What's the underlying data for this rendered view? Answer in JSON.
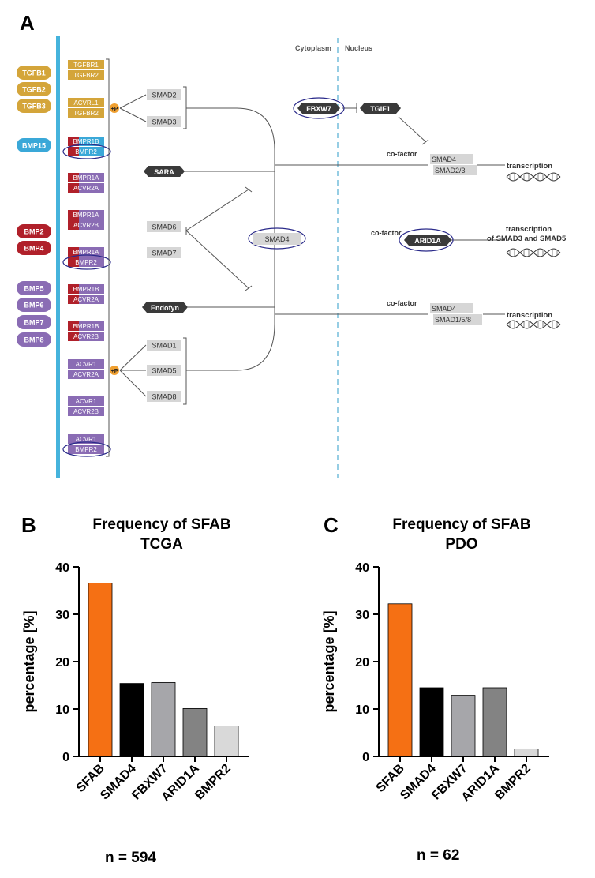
{
  "panels": {
    "a": "A",
    "b": "B",
    "c": "C"
  },
  "diagram": {
    "compartments": {
      "cytoplasm": "Cytoplasm",
      "nucleus": "Nucleus"
    },
    "ligands": {
      "tgfb": [
        "TGFB1",
        "TGFB2",
        "TGFB3"
      ],
      "bmp15": "BMP15",
      "bmp24": [
        "BMP2",
        "BMP4"
      ],
      "bmp58": [
        "BMP5",
        "BMP6",
        "BMP7",
        "BMP8"
      ]
    },
    "receptors": [
      {
        "top": "TGFBR1",
        "bottom": "TGFBR2"
      },
      {
        "top": "ACVRL1",
        "bottom": "TGFBR2"
      },
      {
        "top": "BMPR1B",
        "bottom": "BMPR2"
      },
      {
        "top": "BMPR1A",
        "bottom": "ACVR2A"
      },
      {
        "top": "BMPR1A",
        "bottom": "ACVR2B"
      },
      {
        "top": "BMPR1A",
        "bottom": "BMPR2"
      },
      {
        "top": "BMPR1B",
        "bottom": "ACVR2A"
      },
      {
        "top": "BMPR1B",
        "bottom": "ACVR2B"
      },
      {
        "top": "ACVR1",
        "bottom": "ACVR2A"
      },
      {
        "top": "ACVR1",
        "bottom": "ACVR2B"
      },
      {
        "top": "ACVR1",
        "bottom": "BMPR2"
      }
    ],
    "phospho": "+P",
    "smads": {
      "smad2": "SMAD2",
      "smad3": "SMAD3",
      "smad6": "SMAD6",
      "smad7": "SMAD7",
      "smad1": "SMAD1",
      "smad5": "SMAD5",
      "smad8": "SMAD8",
      "smad4": "SMAD4"
    },
    "sara": "SARA",
    "endofyn": "Endofyn",
    "fbxw7": "FBXW7",
    "tgif1": "TGIF1",
    "arid1a": "ARID1A",
    "cofactor": "co-factor",
    "complex1": [
      "SMAD4",
      "SMAD2/3"
    ],
    "complex2": [
      "SMAD4",
      "SMAD1/5/8"
    ],
    "transcription": "transcription",
    "transcription2": [
      "transcription",
      "of SMAD3 and SMAD5"
    ],
    "colors": {
      "tgfb": "#d4a53a",
      "bmp15": "#3aa8d8",
      "bmp24": "#b0202a",
      "bmp58": "#8a6cb4",
      "membrane": "#45b3dc",
      "smad_gray": "#d6d6d6",
      "dark": "#3a3a3a",
      "phospho": "#f0a030",
      "circle": "#2a2a8a"
    }
  },
  "chart_data": [
    {
      "type": "bar",
      "title": [
        "Frequency of SFAB",
        "TCGA"
      ],
      "categories": [
        "SFAB",
        "SMAD4",
        "FBXW7",
        "ARID1A",
        "BMPR2"
      ],
      "values": [
        36.6,
        15.4,
        15.6,
        10.1,
        6.4
      ],
      "colors": [
        "#f57014",
        "#000000",
        "#a6a6aa",
        "#838383",
        "#d9d9d9"
      ],
      "ylabel": "percentage [%]",
      "xlabel": "",
      "ylim": [
        0,
        40
      ],
      "yticks": [
        0,
        10,
        20,
        30,
        40
      ],
      "footnote": "n = 594"
    },
    {
      "type": "bar",
      "title": [
        "Frequency of SFAB",
        "PDO"
      ],
      "categories": [
        "SFAB",
        "SMAD4",
        "FBXW7",
        "ARID1A",
        "BMPR2"
      ],
      "values": [
        32.2,
        14.5,
        12.9,
        14.5,
        1.6
      ],
      "colors": [
        "#f57014",
        "#000000",
        "#a6a6aa",
        "#838383",
        "#d9d9d9"
      ],
      "ylabel": "percentage [%]",
      "xlabel": "",
      "ylim": [
        0,
        40
      ],
      "yticks": [
        0,
        10,
        20,
        30,
        40
      ],
      "footnote": "n = 62"
    }
  ]
}
